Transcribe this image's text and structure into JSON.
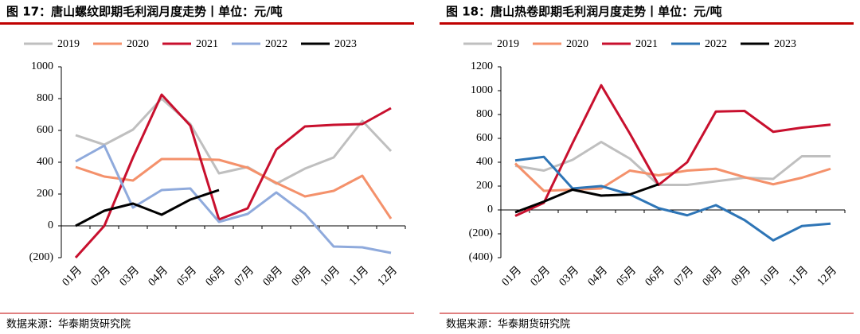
{
  "chart_data": [
    {
      "type": "line",
      "title": "图 17：唐山螺纹即期毛利润月度走势丨单位：元/吨",
      "source": "数据来源：华泰期货研究院",
      "categories": [
        "01月",
        "02月",
        "03月",
        "04月",
        "05月",
        "06月",
        "07月",
        "08月",
        "09月",
        "10月",
        "11月",
        "12月"
      ],
      "ylim": [
        -200,
        1000
      ],
      "yticks": [
        {
          "value": -200,
          "label": "(200)"
        },
        0,
        200,
        400,
        600,
        800,
        1000
      ],
      "negative_tick_color": "#c00000",
      "grid": false,
      "series": [
        {
          "name": "2019",
          "color": "#bfbfbf",
          "values": [
            570,
            510,
            605,
            800,
            640,
            330,
            370,
            265,
            360,
            430,
            660,
            470
          ]
        },
        {
          "name": "2020",
          "color": "#f4916b",
          "values": [
            370,
            310,
            285,
            420,
            420,
            415,
            365,
            270,
            185,
            220,
            315,
            45
          ]
        },
        {
          "name": "2021",
          "color": "#c8102e",
          "values": [
            -200,
            0,
            430,
            825,
            630,
            40,
            110,
            480,
            625,
            635,
            640,
            740
          ]
        },
        {
          "name": "2022",
          "color": "#8faadc",
          "values": [
            405,
            505,
            115,
            225,
            235,
            25,
            75,
            210,
            75,
            -130,
            -135,
            -170
          ]
        },
        {
          "name": "2023",
          "color": "#000000",
          "values": [
            0,
            95,
            140,
            70,
            165,
            225,
            null,
            null,
            null,
            null,
            null,
            null
          ]
        }
      ]
    },
    {
      "type": "line",
      "title": "图 18：唐山热卷即期毛利润月度走势丨单位：元/吨",
      "source": "数据来源：华泰期货研究院",
      "categories": [
        "01月",
        "02月",
        "03月",
        "04月",
        "05月",
        "06月",
        "07月",
        "08月",
        "09月",
        "10月",
        "11月",
        "12月"
      ],
      "ylim": [
        -400,
        1200
      ],
      "yticks": [
        {
          "value": -400,
          "label": "(400)"
        },
        {
          "value": -200,
          "label": "(200)"
        },
        0,
        200,
        400,
        600,
        800,
        1000,
        1200
      ],
      "negative_tick_color": "#c00000",
      "grid": false,
      "series": [
        {
          "name": "2019",
          "color": "#bfbfbf",
          "values": [
            370,
            330,
            420,
            570,
            430,
            210,
            210,
            240,
            270,
            260,
            450,
            450
          ]
        },
        {
          "name": "2020",
          "color": "#f4916b",
          "values": [
            390,
            160,
            170,
            180,
            330,
            290,
            330,
            345,
            275,
            215,
            270,
            345
          ]
        },
        {
          "name": "2021",
          "color": "#c8102e",
          "values": [
            -50,
            60,
            560,
            1045,
            640,
            210,
            400,
            825,
            830,
            655,
            690,
            715
          ]
        },
        {
          "name": "2022",
          "color": "#2e75b6",
          "values": [
            415,
            445,
            180,
            200,
            130,
            15,
            -45,
            40,
            -85,
            -255,
            -135,
            -115
          ]
        },
        {
          "name": "2023",
          "color": "#000000",
          "values": [
            -20,
            70,
            170,
            120,
            130,
            215,
            null,
            null,
            null,
            null,
            null,
            null
          ]
        }
      ]
    }
  ]
}
